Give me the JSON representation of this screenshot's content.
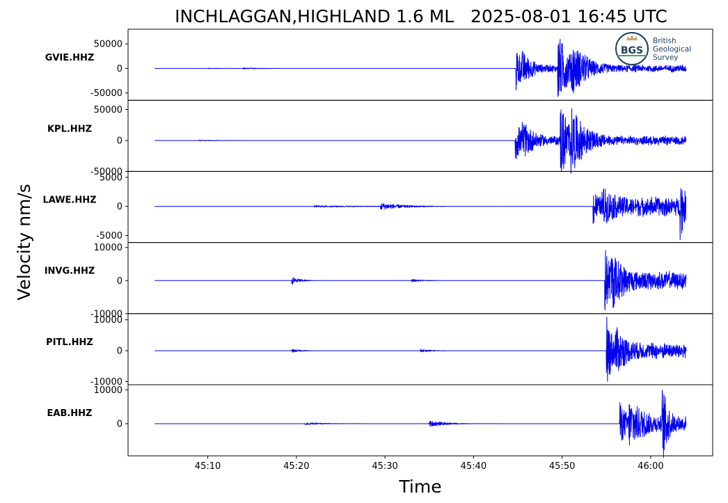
{
  "chart_data": {
    "type": "line",
    "title": "INCHLAGGAN,HIGHLAND 1.6 ML   2025-08-01 16:45 UTC",
    "xlabel": "Time",
    "ylabel": "Velocity nm/s",
    "xlim_seconds": [
      1.0,
      67.0
    ],
    "x_ticks": [
      {
        "label": "45:10",
        "value": 10
      },
      {
        "label": "45:20",
        "value": 20
      },
      {
        "label": "45:30",
        "value": 30
      },
      {
        "label": "45:40",
        "value": 40
      },
      {
        "label": "45:50",
        "value": 50
      },
      {
        "label": "46:00",
        "value": 60
      }
    ],
    "trace_start_seconds": 4.0,
    "trace_end_seconds": 64.0,
    "logo": {
      "acronym": "BGS",
      "lines": [
        "British",
        "Geological",
        "Survey"
      ]
    },
    "panels": [
      {
        "station": "GVIE.HHZ",
        "ylim": [
          -65000,
          80000
        ],
        "yticks": [
          {
            "label": "50000",
            "value": 50000
          },
          {
            "label": "0",
            "value": 0
          },
          {
            "label": "-50000",
            "value": -50000
          }
        ],
        "events": [
          {
            "t": 10.0,
            "amp": 700,
            "dur": 3
          },
          {
            "t": 14.0,
            "amp": 1500,
            "dur": 3
          },
          {
            "t": 44.8,
            "amp": 50000,
            "dur": 1.5
          },
          {
            "t": 45.5,
            "amp": 15000,
            "dur": 5
          },
          {
            "t": 49.5,
            "amp": 70000,
            "dur": 2.5
          },
          {
            "t": 51.0,
            "amp": 30000,
            "dur": 5
          }
        ],
        "coda": 8000
      },
      {
        "station": "KPL.HHZ",
        "ylim": [
          -50000,
          65000
        ],
        "yticks": [
          {
            "label": "50000",
            "value": 50000
          },
          {
            "label": "0",
            "value": 0
          },
          {
            "label": "-50000",
            "value": -50000
          }
        ],
        "events": [
          {
            "t": 9.0,
            "amp": 800,
            "dur": 3
          },
          {
            "t": 44.7,
            "amp": 38000,
            "dur": 1.5
          },
          {
            "t": 45.5,
            "amp": 18000,
            "dur": 5
          },
          {
            "t": 49.8,
            "amp": 62000,
            "dur": 2.0
          },
          {
            "t": 51.0,
            "amp": 30000,
            "dur": 5
          }
        ],
        "coda": 8000
      },
      {
        "station": "LAWE.HHZ",
        "ylim": [
          -6200,
          6000
        ],
        "yticks": [
          {
            "label": "5000",
            "value": 5000
          },
          {
            "label": "0",
            "value": 0
          },
          {
            "label": "-5000",
            "value": -5000
          }
        ],
        "events": [
          {
            "t": 22.0,
            "amp": 150,
            "dur": 10
          },
          {
            "t": 29.5,
            "amp": 600,
            "dur": 4
          },
          {
            "t": 53.5,
            "amp": 3500,
            "dur": 1.5
          },
          {
            "t": 54.5,
            "amp": 2500,
            "dur": 9
          },
          {
            "t": 63.3,
            "amp": 5800,
            "dur": 1.0
          }
        ],
        "coda": 1800
      },
      {
        "station": "INVG.HHZ",
        "ylim": [
          -10000,
          11500
        ],
        "yticks": [
          {
            "label": "10000",
            "value": 10000
          },
          {
            "label": "0",
            "value": 0
          },
          {
            "label": "-10000",
            "value": -10000
          }
        ],
        "events": [
          {
            "t": 19.5,
            "amp": 1200,
            "dur": 1.5
          },
          {
            "t": 33.0,
            "amp": 400,
            "dur": 2
          },
          {
            "t": 54.8,
            "amp": 11000,
            "dur": 1.5
          },
          {
            "t": 55.5,
            "amp": 5000,
            "dur": 8
          }
        ],
        "coda": 3000
      },
      {
        "station": "PITL.HHZ",
        "ylim": [
          -11000,
          12000
        ],
        "yticks": [
          {
            "label": "10000",
            "value": 10000
          },
          {
            "label": "0",
            "value": 0
          },
          {
            "label": "-10000",
            "value": -10000
          }
        ],
        "events": [
          {
            "t": 19.5,
            "amp": 600,
            "dur": 1.5
          },
          {
            "t": 34.0,
            "amp": 500,
            "dur": 2
          },
          {
            "t": 55.0,
            "amp": 12000,
            "dur": 1.5
          },
          {
            "t": 56.0,
            "amp": 4500,
            "dur": 8
          }
        ],
        "coda": 3000
      },
      {
        "station": "EAB.HHZ",
        "ylim": [
          -9500,
          11500
        ],
        "yticks": [
          {
            "label": "10000",
            "value": 10000
          },
          {
            "label": "0",
            "value": 0
          }
        ],
        "events": [
          {
            "t": 21.0,
            "amp": 400,
            "dur": 3
          },
          {
            "t": 35.0,
            "amp": 900,
            "dur": 3
          },
          {
            "t": 56.5,
            "amp": 6500,
            "dur": 2
          },
          {
            "t": 57.5,
            "amp": 5000,
            "dur": 7
          },
          {
            "t": 61.3,
            "amp": 11000,
            "dur": 1.0
          }
        ],
        "coda": 2500
      }
    ]
  }
}
